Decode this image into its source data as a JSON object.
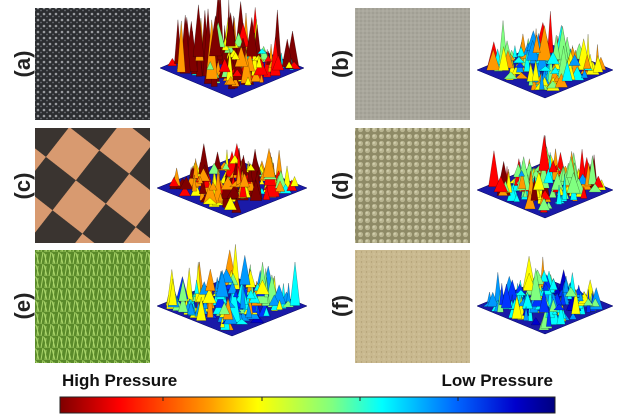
{
  "panels": [
    {
      "label": "(a)"
    },
    {
      "label": "(b)"
    },
    {
      "label": "(c)"
    },
    {
      "label": "(d)"
    },
    {
      "label": "(e)"
    },
    {
      "label": "(f)"
    }
  ],
  "colorbar": {
    "high_label": "High Pressure",
    "low_label": "Low Pressure"
  }
}
